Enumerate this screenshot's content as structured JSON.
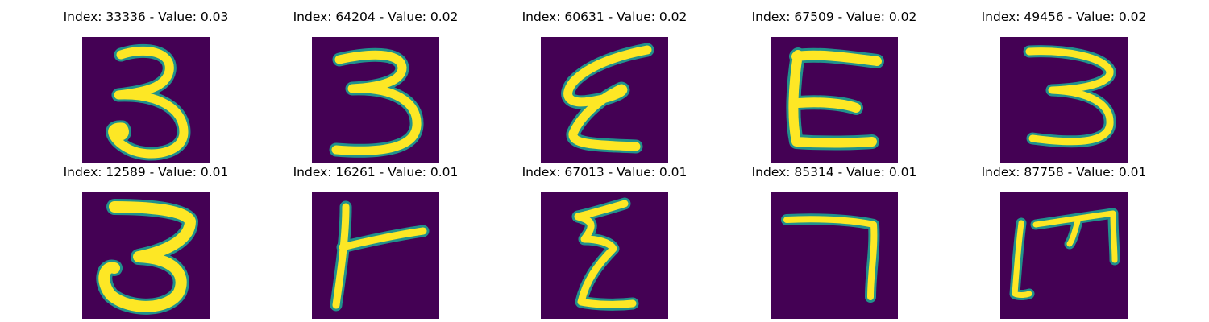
{
  "colors": {
    "background": "#440154",
    "stroke": "#fde725",
    "edge": "#21918c"
  },
  "panels": [
    {
      "title": "Index: 33336 - Value: 0.03",
      "glyph": "digit-3"
    },
    {
      "title": "Index: 64204 - Value: 0.02",
      "glyph": "digit-3"
    },
    {
      "title": "Index: 60631 - Value: 0.02",
      "glyph": "epsilon-stroke"
    },
    {
      "title": "Index: 67509 - Value: 0.02",
      "glyph": "letter-e"
    },
    {
      "title": "Index: 49456 - Value: 0.02",
      "glyph": "digit-3"
    },
    {
      "title": "Index: 12589 - Value: 0.01",
      "glyph": "digit-3"
    },
    {
      "title": "Index: 16261 - Value: 0.01",
      "glyph": "t-shape-stroke"
    },
    {
      "title": "Index: 67013 - Value: 0.01",
      "glyph": "zigzag-stroke"
    },
    {
      "title": "Index: 85314 - Value: 0.01",
      "glyph": "digit-7"
    },
    {
      "title": "Index: 87758 - Value: 0.01",
      "glyph": "letter-m"
    }
  ]
}
